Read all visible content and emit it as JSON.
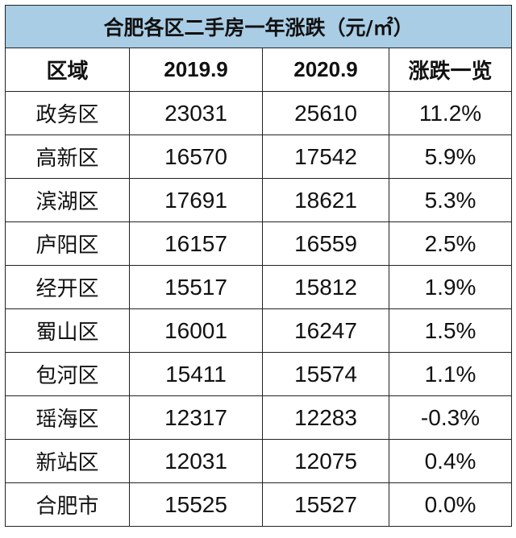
{
  "table": {
    "title": "合肥各区二手房一年涨跌（元/㎡）",
    "headers": [
      "区域",
      "2019.9",
      "2020.9",
      "涨跌一览"
    ],
    "rows": [
      {
        "district": "政务区",
        "y2019": "23031",
        "y2020": "25610",
        "change": "11.2%"
      },
      {
        "district": "高新区",
        "y2019": "16570",
        "y2020": "17542",
        "change": "5.9%"
      },
      {
        "district": "滨湖区",
        "y2019": "17691",
        "y2020": "18621",
        "change": "5.3%"
      },
      {
        "district": "庐阳区",
        "y2019": "16157",
        "y2020": "16559",
        "change": "2.5%"
      },
      {
        "district": "经开区",
        "y2019": "15517",
        "y2020": "15812",
        "change": "1.9%"
      },
      {
        "district": "蜀山区",
        "y2019": "16001",
        "y2020": "16247",
        "change": "1.5%"
      },
      {
        "district": "包河区",
        "y2019": "15411",
        "y2020": "15574",
        "change": "1.1%"
      },
      {
        "district": "瑶海区",
        "y2019": "12317",
        "y2020": "12283",
        "change": "-0.3%"
      },
      {
        "district": "新站区",
        "y2019": "12031",
        "y2020": "12075",
        "change": "0.4%"
      },
      {
        "district": "合肥市",
        "y2019": "15525",
        "y2020": "15527",
        "change": "0.0%"
      }
    ]
  },
  "colors": {
    "title_background": "#a9cde5",
    "border": "#222222",
    "text": "#111111"
  }
}
